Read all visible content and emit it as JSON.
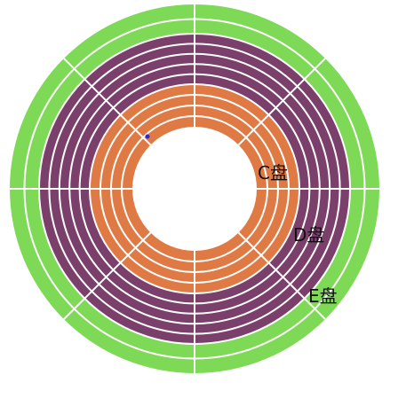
{
  "zones": [
    {
      "label": "C盘",
      "color": "#E07A45",
      "tracks": 4
    },
    {
      "label": "D盘",
      "color": "#7A3F6A",
      "tracks": 5
    },
    {
      "label": "E盘",
      "color": "#7ED957",
      "tracks": 2
    }
  ],
  "divider_color": "#FFFFFF",
  "center_color": "#FFFFFF",
  "sectors": 8,
  "marker_color": "#2B2BD6"
}
